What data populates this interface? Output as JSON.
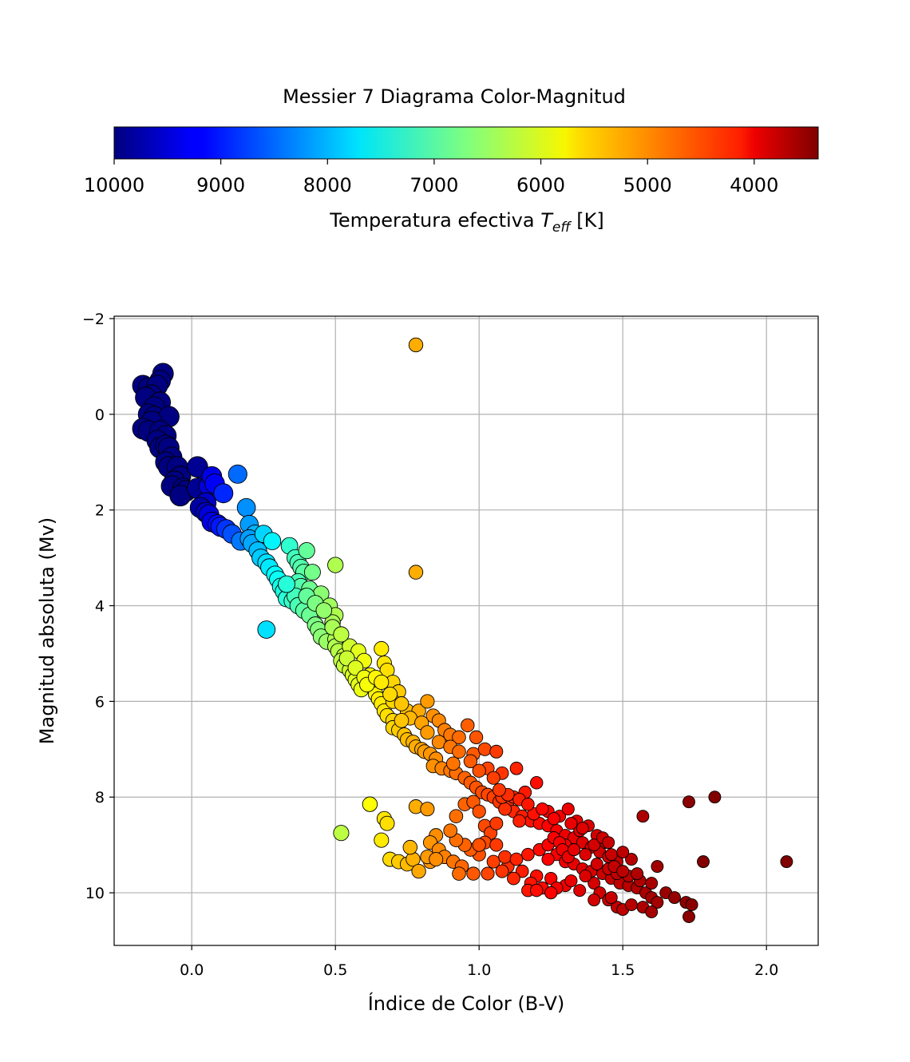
{
  "chart_data": {
    "type": "scatter",
    "title": "Messier 7 Diagrama Color-Magnitud",
    "xlabel": "Índice de Color (B-V)",
    "ylabel": "Magnitud absoluta (Mv)",
    "xlim": [
      -0.27,
      2.18
    ],
    "ylim": [
      11.1,
      -2.05
    ],
    "y_inverted": true,
    "grid": true,
    "x_ticks": [
      0.0,
      0.5,
      1.0,
      1.5,
      2.0
    ],
    "x_tick_labels": [
      "0.0",
      "0.5",
      "1.0",
      "1.5",
      "2.0"
    ],
    "y_ticks": [
      -2,
      0,
      2,
      4,
      6,
      8,
      10
    ],
    "y_tick_labels": [
      "−2",
      "0",
      "2",
      "4",
      "6",
      "8",
      "10"
    ],
    "colorbar": {
      "label_prefix": "Temperatura efectiva ",
      "label_symbol": "T",
      "label_subscript": "eff",
      "label_suffix": " [K]",
      "colormap": "jet",
      "range": [
        10000,
        3400
      ],
      "orientation": "horizontal",
      "placement": "top",
      "ticks": [
        10000,
        9000,
        8000,
        7000,
        6000,
        5000,
        4000
      ],
      "tick_labels": [
        "10000",
        "9000",
        "8000",
        "7000",
        "6000",
        "5000",
        "4000"
      ]
    },
    "points": [
      [
        -0.1,
        -0.85
      ],
      [
        -0.11,
        -0.7
      ],
      [
        -0.17,
        -0.6
      ],
      [
        -0.15,
        -0.55
      ],
      [
        -0.12,
        -0.6
      ],
      [
        -0.14,
        -0.4
      ],
      [
        -0.16,
        -0.35
      ],
      [
        -0.11,
        -0.25
      ],
      [
        -0.13,
        -0.15
      ],
      [
        -0.15,
        0.0
      ],
      [
        -0.13,
        0.05
      ],
      [
        -0.08,
        0.05
      ],
      [
        -0.14,
        0.15
      ],
      [
        -0.17,
        0.3
      ],
      [
        -0.15,
        0.35
      ],
      [
        -0.11,
        0.35
      ],
      [
        -0.09,
        0.45
      ],
      [
        -0.12,
        0.55
      ],
      [
        -0.11,
        0.7
      ],
      [
        -0.09,
        0.65
      ],
      [
        -0.08,
        0.7
      ],
      [
        -0.07,
        0.9
      ],
      [
        -0.09,
        1.0
      ],
      [
        -0.08,
        1.1
      ],
      [
        -0.05,
        1.1
      ],
      [
        -0.04,
        1.3
      ],
      [
        -0.06,
        1.4
      ],
      [
        -0.07,
        1.5
      ],
      [
        -0.03,
        1.55
      ],
      [
        -0.02,
        1.6
      ],
      [
        -0.04,
        1.7
      ],
      [
        0.02,
        1.1
      ],
      [
        0.04,
        1.5
      ],
      [
        0.02,
        1.55
      ],
      [
        0.06,
        1.5
      ],
      [
        0.07,
        1.3
      ],
      [
        0.08,
        1.45
      ],
      [
        0.11,
        1.65
      ],
      [
        0.05,
        1.85
      ],
      [
        0.03,
        1.95
      ],
      [
        0.05,
        2.05
      ],
      [
        0.06,
        2.1
      ],
      [
        0.07,
        2.25
      ],
      [
        0.09,
        2.3
      ],
      [
        0.1,
        2.35
      ],
      [
        0.12,
        2.4
      ],
      [
        0.16,
        1.25
      ],
      [
        0.14,
        2.5
      ],
      [
        0.19,
        1.95
      ],
      [
        0.17,
        2.65
      ],
      [
        0.2,
        2.3
      ],
      [
        0.22,
        2.5
      ],
      [
        0.2,
        2.6
      ],
      [
        0.21,
        2.7
      ],
      [
        0.23,
        2.85
      ],
      [
        0.24,
        3.0
      ],
      [
        0.25,
        2.5
      ],
      [
        0.26,
        3.1
      ],
      [
        0.28,
        2.65
      ],
      [
        0.27,
        3.2
      ],
      [
        0.29,
        3.35
      ],
      [
        0.3,
        3.45
      ],
      [
        0.31,
        3.6
      ],
      [
        0.32,
        3.7
      ],
      [
        0.33,
        3.85
      ],
      [
        0.35,
        3.9
      ],
      [
        0.34,
        2.75
      ],
      [
        0.36,
        3.0
      ],
      [
        0.37,
        3.1
      ],
      [
        0.38,
        3.2
      ],
      [
        0.39,
        3.3
      ],
      [
        0.37,
        3.5
      ],
      [
        0.38,
        3.6
      ],
      [
        0.36,
        3.8
      ],
      [
        0.4,
        2.85
      ],
      [
        0.41,
        3.65
      ],
      [
        0.42,
        3.3
      ],
      [
        0.37,
        4.0
      ],
      [
        0.39,
        4.1
      ],
      [
        0.41,
        4.2
      ],
      [
        0.43,
        4.4
      ],
      [
        0.44,
        4.5
      ],
      [
        0.45,
        4.65
      ],
      [
        0.47,
        4.75
      ],
      [
        0.45,
        3.75
      ],
      [
        0.48,
        4.0
      ],
      [
        0.5,
        4.2
      ],
      [
        0.49,
        4.35
      ],
      [
        0.5,
        4.7
      ],
      [
        0.5,
        4.85
      ],
      [
        0.51,
        4.95
      ],
      [
        0.53,
        5.05
      ],
      [
        0.52,
        5.15
      ],
      [
        0.53,
        5.25
      ],
      [
        0.55,
        5.35
      ],
      [
        0.56,
        5.45
      ],
      [
        0.57,
        5.55
      ],
      [
        0.58,
        5.65
      ],
      [
        0.59,
        5.75
      ],
      [
        0.55,
        4.85
      ],
      [
        0.58,
        4.95
      ],
      [
        0.6,
        5.15
      ],
      [
        0.62,
        5.45
      ],
      [
        0.63,
        5.7
      ],
      [
        0.64,
        5.85
      ],
      [
        0.65,
        5.95
      ],
      [
        0.66,
        6.05
      ],
      [
        0.67,
        6.2
      ],
      [
        0.68,
        6.3
      ],
      [
        0.7,
        6.4
      ],
      [
        0.7,
        6.55
      ],
      [
        0.72,
        6.6
      ],
      [
        0.74,
        6.7
      ],
      [
        0.75,
        6.8
      ],
      [
        0.77,
        6.85
      ],
      [
        0.78,
        6.95
      ],
      [
        0.8,
        7.0
      ],
      [
        0.81,
        7.05
      ],
      [
        0.83,
        7.1
      ],
      [
        0.85,
        7.2
      ],
      [
        0.84,
        7.35
      ],
      [
        0.87,
        7.4
      ],
      [
        0.9,
        7.45
      ],
      [
        0.92,
        7.5
      ],
      [
        0.95,
        7.6
      ],
      [
        0.97,
        7.7
      ],
      [
        0.99,
        7.8
      ],
      [
        1.01,
        7.9
      ],
      [
        1.03,
        7.95
      ],
      [
        1.05,
        8.0
      ],
      [
        1.07,
        8.1
      ],
      [
        1.1,
        8.2
      ],
      [
        1.12,
        8.3
      ],
      [
        1.15,
        8.4
      ],
      [
        1.18,
        8.5
      ],
      [
        1.21,
        8.55
      ],
      [
        1.24,
        8.6
      ],
      [
        1.27,
        8.7
      ],
      [
        1.3,
        8.8
      ],
      [
        1.33,
        8.85
      ],
      [
        1.36,
        8.95
      ],
      [
        1.39,
        9.05
      ],
      [
        1.42,
        9.15
      ],
      [
        1.45,
        9.25
      ],
      [
        1.48,
        9.35
      ],
      [
        0.66,
        4.9
      ],
      [
        0.67,
        5.2
      ],
      [
        0.68,
        5.35
      ],
      [
        0.7,
        5.6
      ],
      [
        0.72,
        5.8
      ],
      [
        0.7,
        6.0
      ],
      [
        0.75,
        6.2
      ],
      [
        0.79,
        6.2
      ],
      [
        0.82,
        6.0
      ],
      [
        0.84,
        6.3
      ],
      [
        0.86,
        6.4
      ],
      [
        0.88,
        6.6
      ],
      [
        0.9,
        6.7
      ],
      [
        0.93,
        6.75
      ],
      [
        0.96,
        6.5
      ],
      [
        0.99,
        6.75
      ],
      [
        0.98,
        7.1
      ],
      [
        1.02,
        7.0
      ],
      [
        1.06,
        7.05
      ],
      [
        1.03,
        7.4
      ],
      [
        1.08,
        7.5
      ],
      [
        1.13,
        7.4
      ],
      [
        1.2,
        7.7
      ],
      [
        1.16,
        7.9
      ],
      [
        1.12,
        8.0
      ],
      [
        1.09,
        8.25
      ],
      [
        1.14,
        8.5
      ],
      [
        1.19,
        8.35
      ],
      [
        1.24,
        8.3
      ],
      [
        1.28,
        8.4
      ],
      [
        1.31,
        8.25
      ],
      [
        1.34,
        8.5
      ],
      [
        1.38,
        8.6
      ],
      [
        1.41,
        8.8
      ],
      [
        1.44,
        8.95
      ],
      [
        1.35,
        8.7
      ],
      [
        1.3,
        9.0
      ],
      [
        1.27,
        9.2
      ],
      [
        1.24,
        9.3
      ],
      [
        1.3,
        9.35
      ],
      [
        1.33,
        9.4
      ],
      [
        1.36,
        9.5
      ],
      [
        1.39,
        9.55
      ],
      [
        1.43,
        9.6
      ],
      [
        1.46,
        9.7
      ],
      [
        1.49,
        9.8
      ],
      [
        1.52,
        9.85
      ],
      [
        1.55,
        9.9
      ],
      [
        1.58,
        10.0
      ],
      [
        1.6,
        10.1
      ],
      [
        1.62,
        10.2
      ],
      [
        1.4,
        9.8
      ],
      [
        1.42,
        10.0
      ],
      [
        1.45,
        10.15
      ],
      [
        1.48,
        10.3
      ],
      [
        1.5,
        10.35
      ],
      [
        1.35,
        9.95
      ],
      [
        1.3,
        9.85
      ],
      [
        1.25,
        9.7
      ],
      [
        1.2,
        9.65
      ],
      [
        1.15,
        9.55
      ],
      [
        1.1,
        9.45
      ],
      [
        1.05,
        9.35
      ],
      [
        1.0,
        9.2
      ],
      [
        0.97,
        9.1
      ],
      [
        0.95,
        9.0
      ],
      [
        0.92,
        8.9
      ],
      [
        0.9,
        8.7
      ],
      [
        0.85,
        8.8
      ],
      [
        0.83,
        8.95
      ],
      [
        0.86,
        9.1
      ],
      [
        0.88,
        9.25
      ],
      [
        0.91,
        9.35
      ],
      [
        0.94,
        9.45
      ],
      [
        0.93,
        9.6
      ],
      [
        0.98,
        9.6
      ],
      [
        1.03,
        9.6
      ],
      [
        1.08,
        9.55
      ],
      [
        1.12,
        9.7
      ],
      [
        1.18,
        9.8
      ],
      [
        1.22,
        9.9
      ],
      [
        1.17,
        9.95
      ],
      [
        1.27,
        9.9
      ],
      [
        1.32,
        9.75
      ],
      [
        1.37,
        9.65
      ],
      [
        1.41,
        9.4
      ],
      [
        1.45,
        9.5
      ],
      [
        1.48,
        9.6
      ],
      [
        1.52,
        9.65
      ],
      [
        1.56,
        9.75
      ],
      [
        1.6,
        9.8
      ],
      [
        1.65,
        10.0
      ],
      [
        1.68,
        10.1
      ],
      [
        1.72,
        10.2
      ],
      [
        1.74,
        10.25
      ],
      [
        1.73,
        10.5
      ],
      [
        1.62,
        9.45
      ],
      [
        1.53,
        9.3
      ],
      [
        1.57,
        8.4
      ],
      [
        1.73,
        8.1
      ],
      [
        1.82,
        8.0
      ],
      [
        1.78,
        9.35
      ],
      [
        2.07,
        9.35
      ],
      [
        0.52,
        8.75
      ],
      [
        0.62,
        8.15
      ],
      [
        0.67,
        8.45
      ],
      [
        0.68,
        8.55
      ],
      [
        0.66,
        8.9
      ],
      [
        0.69,
        9.3
      ],
      [
        0.72,
        9.35
      ],
      [
        0.75,
        9.4
      ],
      [
        0.77,
        9.3
      ],
      [
        0.76,
        9.05
      ],
      [
        0.79,
        9.55
      ],
      [
        0.83,
        9.35
      ],
      [
        0.82,
        9.25
      ],
      [
        0.85,
        9.3
      ],
      [
        0.78,
        8.2
      ],
      [
        0.82,
        8.25
      ],
      [
        0.92,
        8.4
      ],
      [
        0.95,
        8.15
      ],
      [
        0.98,
        8.1
      ],
      [
        1.0,
        8.3
      ],
      [
        1.02,
        8.6
      ],
      [
        1.04,
        8.75
      ],
      [
        1.02,
        8.95
      ],
      [
        1.06,
        9.0
      ],
      [
        1.09,
        9.25
      ],
      [
        1.13,
        9.3
      ],
      [
        1.17,
        9.2
      ],
      [
        1.21,
        9.1
      ],
      [
        1.24,
        9.0
      ],
      [
        1.26,
        8.85
      ],
      [
        1.28,
        8.95
      ],
      [
        1.29,
        9.1
      ],
      [
        1.31,
        9.25
      ],
      [
        1.33,
        9.1
      ],
      [
        1.37,
        9.2
      ],
      [
        1.4,
        9.0
      ],
      [
        1.43,
        8.85
      ],
      [
        1.46,
        9.2
      ],
      [
        1.5,
        9.15
      ],
      [
        1.4,
        10.15
      ],
      [
        1.46,
        10.1
      ],
      [
        1.53,
        10.25
      ],
      [
        1.57,
        10.3
      ],
      [
        1.6,
        10.4
      ],
      [
        1.25,
        10.0
      ],
      [
        1.2,
        9.95
      ],
      [
        1.0,
        9.0
      ],
      [
        1.06,
        8.55
      ],
      [
        1.08,
        8.0
      ],
      [
        1.1,
        7.95
      ],
      [
        0.78,
        -1.45
      ],
      [
        0.78,
        3.3
      ],
      [
        0.26,
        4.5
      ],
      [
        0.5,
        3.15
      ],
      [
        0.33,
        3.55
      ],
      [
        0.4,
        3.8
      ],
      [
        0.43,
        3.95
      ],
      [
        0.46,
        4.1
      ],
      [
        0.49,
        4.45
      ],
      [
        0.52,
        4.6
      ],
      [
        0.54,
        5.1
      ],
      [
        0.57,
        5.3
      ],
      [
        0.6,
        5.5
      ],
      [
        0.61,
        5.65
      ],
      [
        0.64,
        5.5
      ],
      [
        0.66,
        5.6
      ],
      [
        0.69,
        5.85
      ],
      [
        0.73,
        6.05
      ],
      [
        0.76,
        6.35
      ],
      [
        0.73,
        6.4
      ],
      [
        0.8,
        6.45
      ],
      [
        0.82,
        6.65
      ],
      [
        0.86,
        6.85
      ],
      [
        0.9,
        6.95
      ],
      [
        0.93,
        7.05
      ],
      [
        0.97,
        7.25
      ],
      [
        0.91,
        7.3
      ],
      [
        1.0,
        7.45
      ],
      [
        1.05,
        7.6
      ],
      [
        1.07,
        7.85
      ],
      [
        1.14,
        8.05
      ],
      [
        1.17,
        8.15
      ],
      [
        1.22,
        8.25
      ],
      [
        1.26,
        8.45
      ],
      [
        1.32,
        8.55
      ],
      [
        1.36,
        8.65
      ],
      [
        1.45,
        8.95
      ],
      [
        1.47,
        9.45
      ],
      [
        1.5,
        9.55
      ],
      [
        1.55,
        9.6
      ]
    ]
  }
}
